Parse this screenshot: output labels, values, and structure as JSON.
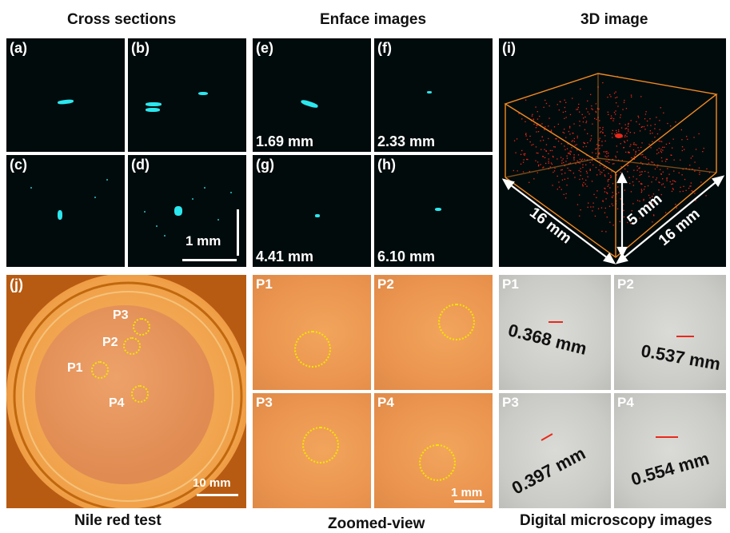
{
  "headings": {
    "cross_sections": "Cross sections",
    "enface_images": "Enface images",
    "image_3d": "3D image",
    "nile_red_test": "Nile red test",
    "zoomed_view": "Zoomed-view",
    "digital_microscopy": "Digital microscopy images"
  },
  "cross_panels": [
    "(a)",
    "(b)",
    "(c)",
    "(d)"
  ],
  "cross_scale": "1 mm",
  "enface_panels": [
    {
      "label": "(e)",
      "depth": "1.69 mm"
    },
    {
      "label": "(f)",
      "depth": "2.33 mm"
    },
    {
      "label": "(g)",
      "depth": "4.41 mm"
    },
    {
      "label": "(h)",
      "depth": "6.10 mm"
    }
  ],
  "panel_3d": {
    "label": "(i)",
    "dim_left": "16 mm",
    "dim_height": "5 mm",
    "dim_right": "16 mm"
  },
  "nile_red": {
    "label": "(j)",
    "points": [
      "P1",
      "P2",
      "P3",
      "P4"
    ],
    "scale": "10 mm"
  },
  "zoom_panels": [
    "P1",
    "P2",
    "P3",
    "P4"
  ],
  "zoom_scale": "1 mm",
  "micro_panels": [
    {
      "label": "P1",
      "value": "0.368 mm"
    },
    {
      "label": "P2",
      "value": "0.537 mm"
    },
    {
      "label": "P3",
      "value": "0.397 mm"
    },
    {
      "label": "P4",
      "value": "0.554 mm"
    }
  ],
  "colors": {
    "oct_signal": "#2be7ee",
    "point_cloud": "#e8291c",
    "box_edges": "#f08a22",
    "circle_marker": "#f5e400",
    "measure_bar": "#e8291c"
  }
}
